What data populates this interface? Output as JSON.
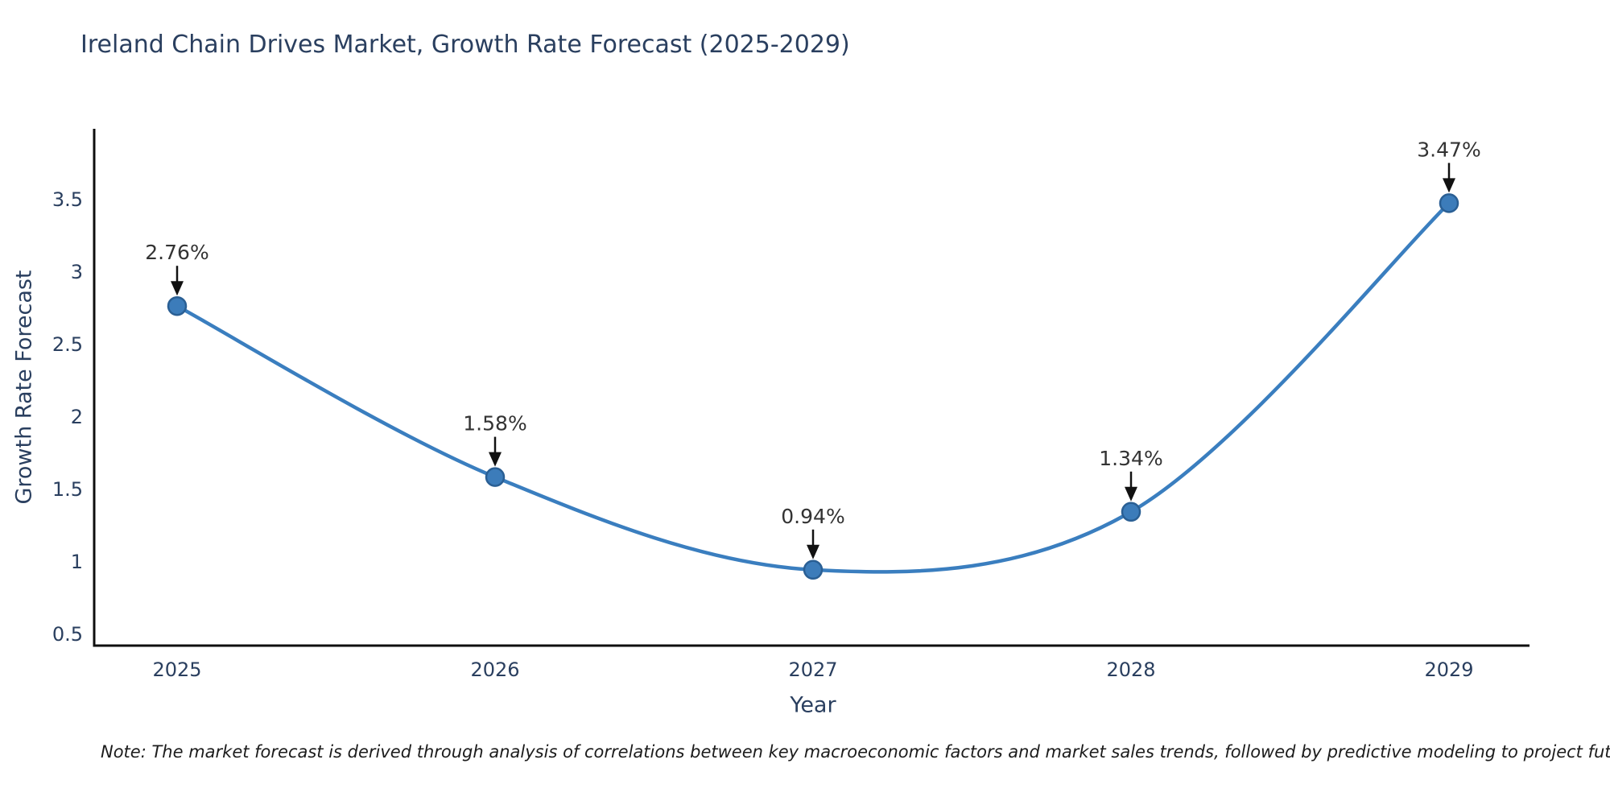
{
  "note": "Note: The market forecast is derived through analysis of correlations between key macroeconomic factors and market sales trends, followed by predictive modeling to project future sales",
  "chart_data": {
    "type": "line",
    "title": "Ireland Chain Drives Market, Growth Rate Forecast (2025-2029)",
    "xlabel": "Year",
    "ylabel": "Growth Rate Forecast",
    "categories": [
      "2025",
      "2026",
      "2027",
      "2028",
      "2029"
    ],
    "values": [
      2.76,
      1.58,
      0.94,
      1.34,
      3.47
    ],
    "point_labels": [
      "2.76%",
      "1.58%",
      "0.94%",
      "1.34%",
      "3.47%"
    ],
    "series_name": "Growth Rate Forecast",
    "line_shape": "spline",
    "markers": true,
    "annotations_arrows": true,
    "ytick_values": [
      0.5,
      1,
      1.5,
      2,
      2.5,
      3,
      3.5
    ],
    "ytick_labels": [
      "0.5",
      "1",
      "1.5",
      "2",
      "2.5",
      "3",
      "3.5"
    ],
    "ylim": [
      0.42,
      3.98
    ],
    "grid": false,
    "legend": "none",
    "colors": {
      "line": "#3a7ebf",
      "marker_fill": "#3c7cba",
      "marker_edge": "#2a5f94",
      "arrow": "#111111",
      "axis_line": "#0f0f0f",
      "tick_text": "#2a3f5f",
      "title_text": "#2a3f5f",
      "annotation_text": "#333333",
      "background": "#ffffff"
    }
  }
}
